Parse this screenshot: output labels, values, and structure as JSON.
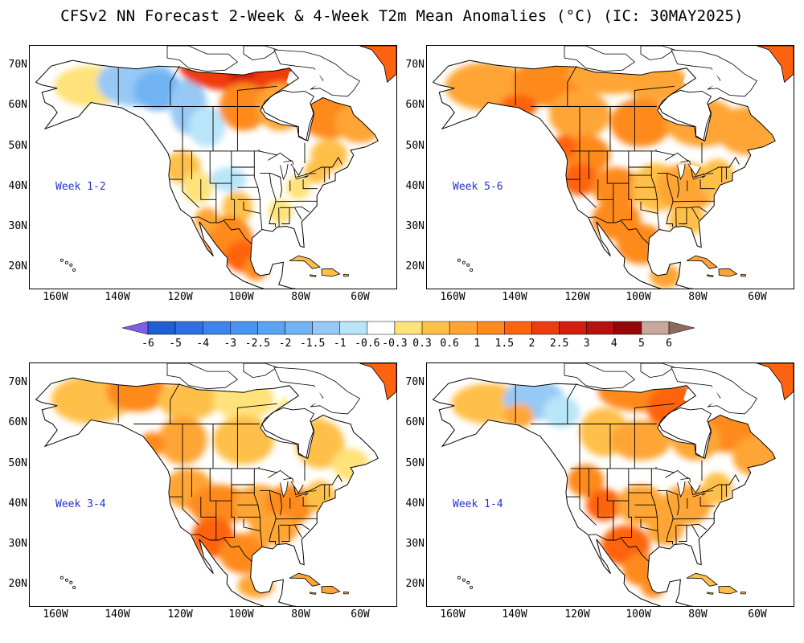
{
  "title": "CFSv2 NN Forecast 2-Week & 4-Week T2m Mean Anomalies (°C) (IC: 30MAY2025)",
  "lat_labels": [
    "70N",
    "60N",
    "50N",
    "40N",
    "30N",
    "20N"
  ],
  "lon_labels": [
    "160W",
    "140W",
    "120W",
    "100W",
    "80W",
    "60W"
  ],
  "panels": [
    {
      "id": "week12",
      "label": "Week 1-2",
      "pattern": "mixed-cold-west"
    },
    {
      "id": "week56",
      "label": "Week 5-6",
      "pattern": "warm"
    },
    {
      "id": "week34",
      "label": "Week 3-4",
      "pattern": "warm-moderate"
    },
    {
      "id": "week14",
      "label": "Week 1-4",
      "pattern": "mixed-warm"
    }
  ],
  "colorbar": {
    "labels": [
      "-6",
      "-5",
      "-4",
      "-3",
      "-2.5",
      "-2",
      "-1.5",
      "-1",
      "-0.6",
      "-0.3",
      "0.3",
      "0.6",
      "1",
      "1.5",
      "2",
      "2.5",
      "3",
      "4",
      "5",
      "6"
    ],
    "colors": [
      "#9f86f0",
      "#1f5fd0",
      "#2f6fe0",
      "#3f84ec",
      "#4a94ee",
      "#5aa3f0",
      "#72b4f3",
      "#96c9f5",
      "#b9e5f8",
      "#ffffff",
      "#ffe27a",
      "#ffc04a",
      "#ffa535",
      "#ff8a1f",
      "#ff6310",
      "#f03a10",
      "#d81b10",
      "#b8100f",
      "#95080a",
      "#c9a79a"
    ],
    "end_left_color": "#7f5fe6",
    "end_right_color": "#8c6b5a"
  }
}
